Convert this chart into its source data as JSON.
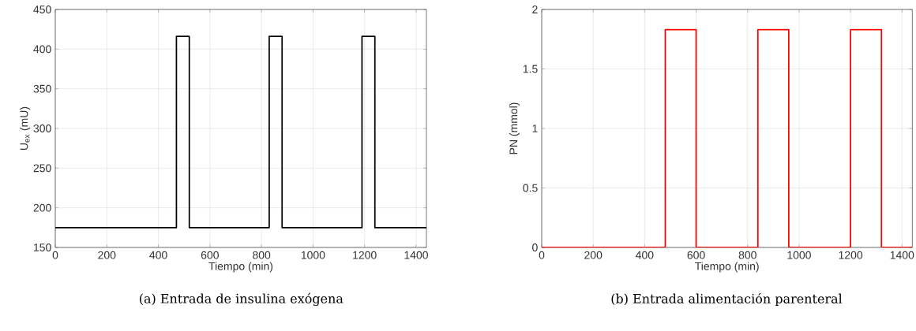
{
  "chart_data": [
    {
      "type": "step",
      "title": "(a) Entrada de insulina exógena",
      "xlabel": "Tiempo (min)",
      "ylabel": "U$_{ex}$ (mU)",
      "x": [
        0,
        470,
        520,
        830,
        880,
        1190,
        1240,
        1440
      ],
      "values": [
        175,
        416,
        175,
        416,
        175,
        416,
        175,
        175
      ],
      "color": "#000000",
      "xlim": [
        0,
        1440
      ],
      "xticks": [
        0,
        200,
        400,
        600,
        800,
        1000,
        1200,
        1400
      ],
      "ylim": [
        150,
        450
      ],
      "yticks": [
        150,
        200,
        250,
        300,
        350,
        400,
        450
      ],
      "grid": true
    },
    {
      "type": "step",
      "title": "(b) Entrada alimentación parenteral",
      "xlabel": "Tiempo (min)",
      "ylabel": "PN (mmol)",
      "x": [
        0,
        480,
        600,
        840,
        960,
        1200,
        1320,
        1440
      ],
      "values": [
        0,
        1.83,
        0,
        1.83,
        0,
        1.83,
        0,
        0
      ],
      "color": "#ff0000",
      "xlim": [
        0,
        1440
      ],
      "xticks": [
        0,
        200,
        400,
        600,
        800,
        1000,
        1200,
        1400
      ],
      "ylim": [
        0,
        2
      ],
      "yticks": [
        0,
        0.5,
        1,
        1.5,
        2
      ],
      "grid": true
    }
  ]
}
